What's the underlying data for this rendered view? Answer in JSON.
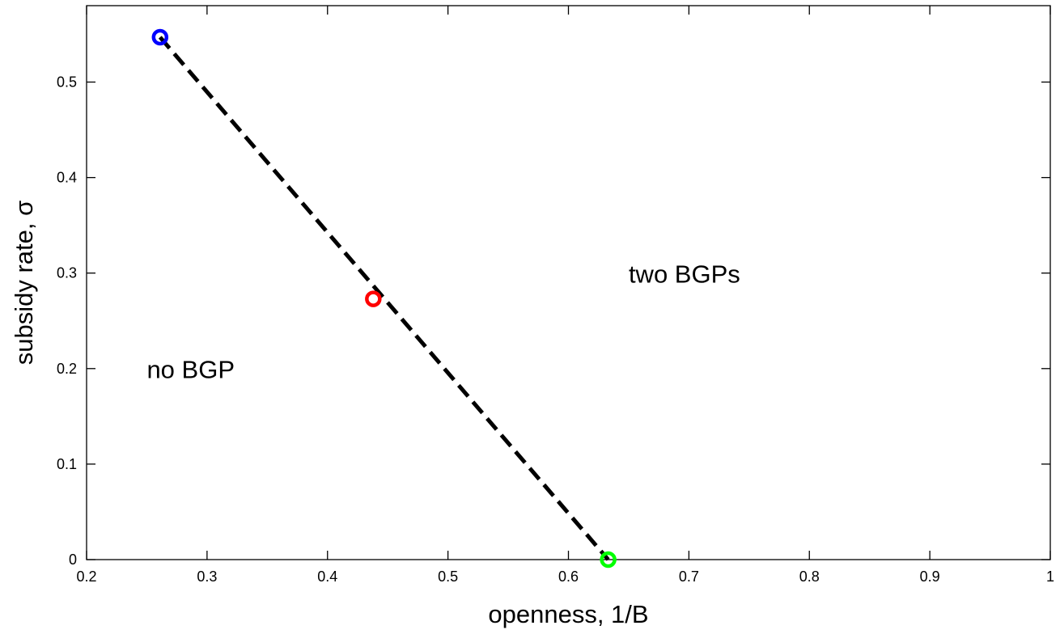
{
  "chart_data": {
    "type": "line",
    "xlabel": "openness, 1/B",
    "ylabel": "subsidy rate, σ",
    "xlim": [
      0.2,
      1.0
    ],
    "ylim": [
      0,
      0.58
    ],
    "xticks": [
      0.2,
      0.3,
      0.4,
      0.5,
      0.6,
      0.7,
      0.8,
      0.9,
      1.0
    ],
    "xtick_labels": [
      "0.2",
      "0.3",
      "0.4",
      "0.5",
      "0.6",
      "0.7",
      "0.8",
      "0.9",
      "1"
    ],
    "yticks": [
      0,
      0.1,
      0.2,
      0.3,
      0.4,
      0.5
    ],
    "ytick_labels": [
      "0",
      "0.1",
      "0.2",
      "0.3",
      "0.4",
      "0.5"
    ],
    "grid": false,
    "series": [
      {
        "style": "dashed",
        "color": "#000000",
        "x": [
          0.261,
          0.633
        ],
        "y": [
          0.547,
          0.0
        ]
      }
    ],
    "markers": [
      {
        "x": 0.261,
        "y": 0.547,
        "color": "#0000ff"
      },
      {
        "x": 0.438,
        "y": 0.273,
        "color": "#ff0000"
      },
      {
        "x": 0.633,
        "y": 0.0,
        "color": "#00ff00"
      }
    ],
    "annotations": [
      {
        "text": "two BGPs",
        "x": 0.65,
        "y": 0.29
      },
      {
        "text": "no BGP",
        "x": 0.25,
        "y": 0.19
      }
    ]
  }
}
